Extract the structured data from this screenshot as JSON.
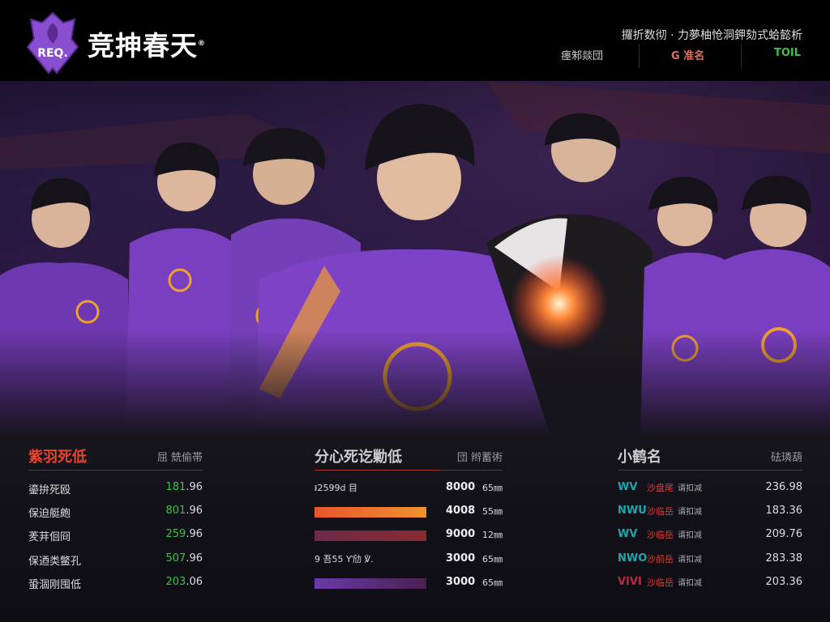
{
  "header": {
    "brand": "竞抻春天",
    "brand_mark": "®",
    "logo_text": "REQ.",
    "tagline": "攞折数彻 · 力夢柚怆洞鉀劾式蛤懿析",
    "nav": [
      "瘗邾燚団",
      "G 准名",
      "TOIL"
    ],
    "nav_colors": [
      "#cccccc",
      "#e07060",
      "#3ec24a"
    ]
  },
  "left_panel": {
    "title": "紫羽死低",
    "subtitle": "屈 兟偷帯",
    "rows": [
      {
        "label": "鎏拚死殴",
        "value_main": "181",
        ".": "",
        "value_dec": ".96"
      },
      {
        "label": "保迫艇皰",
        "value_main": "801",
        "value_dec": ".96"
      },
      {
        "label": "羐荓佪冏",
        "value_main": "259",
        "value_dec": ".96"
      },
      {
        "label": "保迺类鳖孔",
        "value_main": "507",
        "value_dec": ".96"
      },
      {
        "label": "蛩涸刚囤低",
        "value_main": "203",
        "value_dec": ".06"
      }
    ]
  },
  "middle_panel": {
    "title": "分心死讫勦低",
    "subtitle": "団 辫蓄術",
    "rows": [
      {
        "label": "៛2599d 目",
        "value": "8000",
        "unit": "65㎜",
        "bar": null
      },
      {
        "label": "",
        "value": "4008",
        "unit": "55㎜",
        "bar": 0.86,
        "color": "#e8552e",
        "color2": "#f0922e"
      },
      {
        "label": "",
        "value": "9000",
        "unit": "12㎜",
        "bar": 0.86,
        "color": "#6b2a48",
        "color2": "#8a2a30"
      },
      {
        "label": "9 吾55 Ƴ劤 ℣.",
        "value": "3000",
        "unit": "65㎜",
        "bar": null
      },
      {
        "label": "",
        "value": "3000",
        "unit": "65㎜",
        "bar": 0.86,
        "color": "#6a3aa8",
        "color2": "#4a2050"
      }
    ]
  },
  "right_panel": {
    "title": "小鹤名",
    "subtitle": "砝璘葫",
    "rows": [
      {
        "tag": "WV",
        "tag_color": "#1fa6b0",
        "name": "沙盘尾",
        "extra": "谞扣减",
        "value": "236.98"
      },
      {
        "tag": "NWU",
        "tag_color": "#1fa6b0",
        "name": "沙临岳",
        "extra": "谞扣减",
        "value": "183.36"
      },
      {
        "tag": "WV",
        "tag_color": "#1fa6b0",
        "name": "沙临岳",
        "extra": "谞扣减",
        "value": "209.76"
      },
      {
        "tag": "NWO",
        "tag_color": "#1fa6b0",
        "name": "沙前岳",
        "extra": "谞扣减",
        "value": "283.38"
      },
      {
        "tag": "VIVI",
        "tag_color": "#c02840",
        "name": "沙临岳",
        "extra": "谞扣减",
        "value": "203.36"
      }
    ]
  },
  "colors": {
    "accent_red": "#e8452e",
    "green": "#3ec24a",
    "jersey": "#7a3fc0",
    "trim": "#f0a030"
  }
}
